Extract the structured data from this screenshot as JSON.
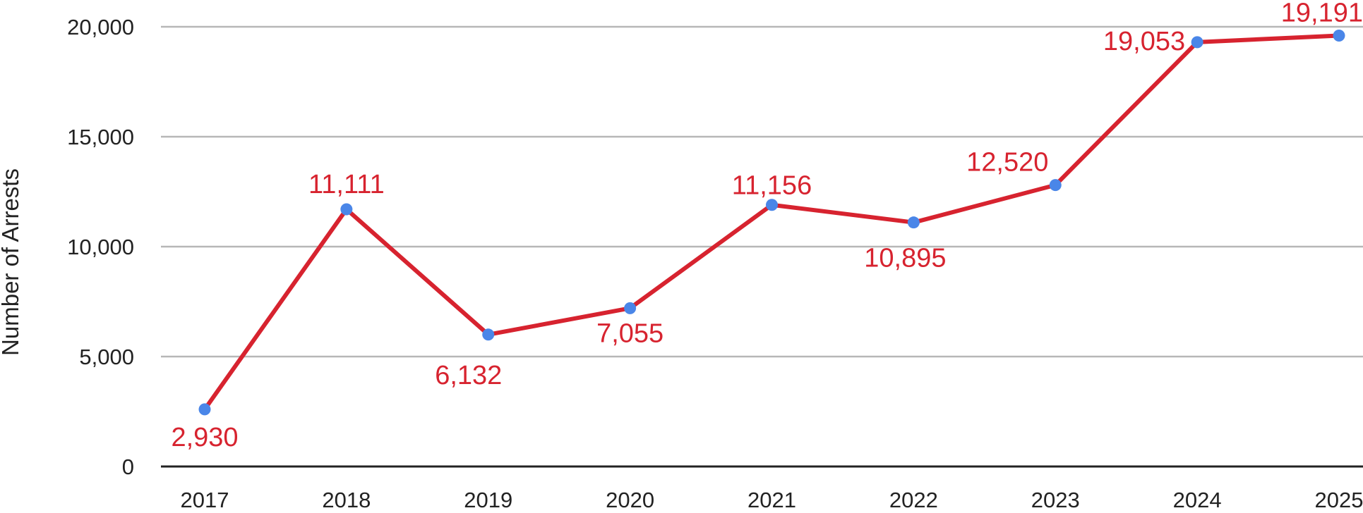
{
  "chart_data": {
    "type": "line",
    "title": "",
    "xlabel": "",
    "ylabel": "Number of Arrests",
    "categories": [
      "2017",
      "2018",
      "2019",
      "2020",
      "2021",
      "2022",
      "2023",
      "2024",
      "2025"
    ],
    "series": [
      {
        "values": [
          2930,
          11111,
          6132,
          7055,
          11156,
          10895,
          12520,
          19053,
          19191
        ],
        "data_labels": [
          "2,930",
          "11,111",
          "6,132",
          "7,055",
          "11,156",
          "10,895",
          "12,520",
          "19,053",
          "19,191"
        ]
      }
    ],
    "y_points": [
      2600,
      11700,
      6000,
      7200,
      11900,
      11100,
      12800,
      19300,
      19600
    ],
    "ylim": [
      0,
      20000
    ],
    "yticks": [
      0,
      5000,
      10000,
      15000,
      20000
    ],
    "ytick_labels": [
      "0",
      "5,000",
      "10,000",
      "15,000",
      "20,000"
    ],
    "grid": true,
    "legend": "none",
    "colors": {
      "line": "#d7232f",
      "marker": "#4a86e8",
      "label": "#d7232f",
      "grid": "#b7b7b7",
      "axis": "#222222",
      "tick_text": "#222222"
    }
  }
}
